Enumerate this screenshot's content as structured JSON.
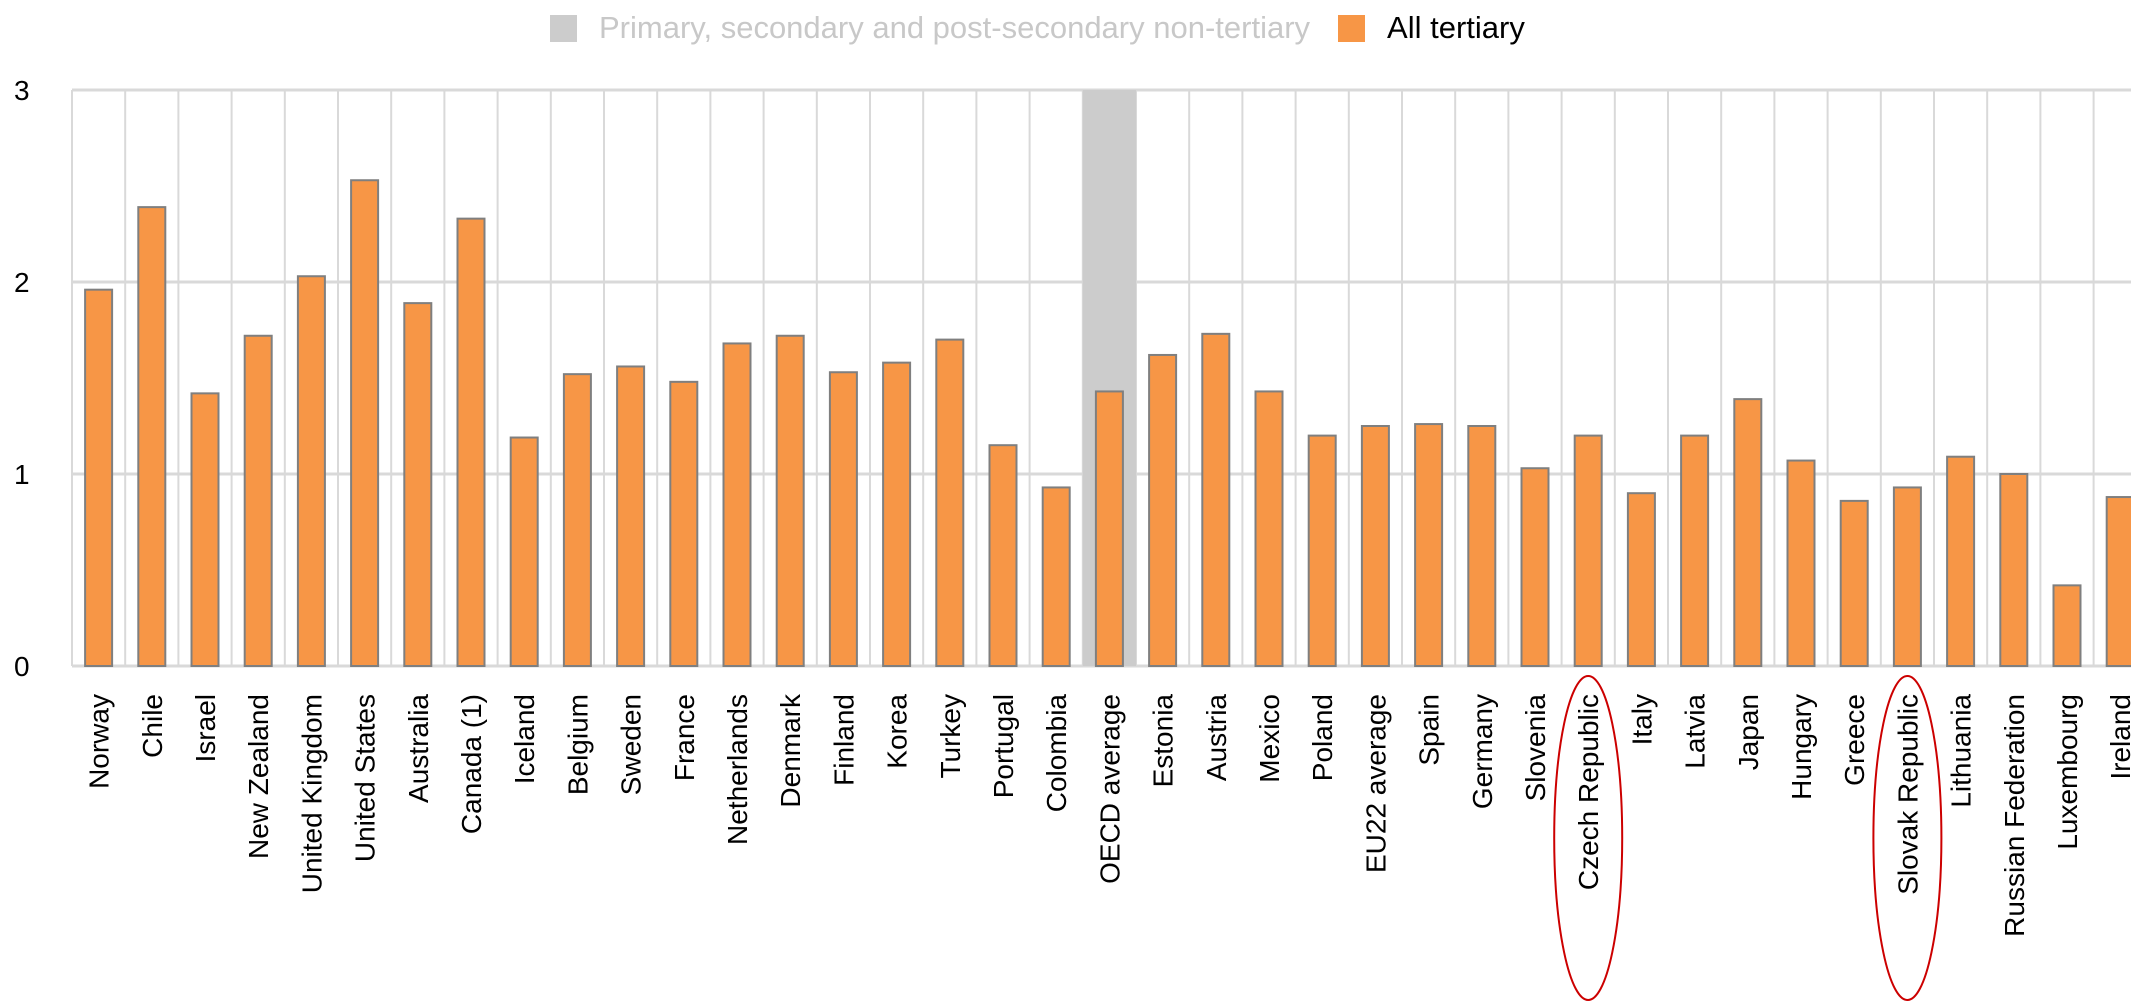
{
  "legend": {
    "items": [
      {
        "label": "Primary, secondary and post-secondary non-tertiary",
        "color": "#cccccc",
        "active": false
      },
      {
        "label": "All tertiary",
        "color": "#f79646",
        "active": true
      }
    ]
  },
  "chart_data": {
    "type": "bar",
    "title": "",
    "xlabel": "",
    "ylabel": "",
    "ylim": [
      0,
      3
    ],
    "yticks": [
      "0",
      "1",
      "2",
      "3"
    ],
    "grid": true,
    "legend_position": "top",
    "bar_color": "#f79646",
    "bar_edge_color": "#7f7f7f",
    "highlight_color": "#cccccc",
    "highlight_category": "OECD average",
    "circle_color": "#cc0000",
    "circled_categories": [
      "Czech Republic",
      "Slovak Republic"
    ],
    "categories": [
      "Norway",
      "Chile",
      "Israel",
      "New Zealand",
      "United Kingdom",
      "United States",
      "Australia",
      "Canada (1)",
      "Iceland",
      "Belgium",
      "Sweden",
      "France",
      "Netherlands",
      "Denmark",
      "Finland",
      "Korea",
      "Turkey",
      "Portugal",
      "Colombia",
      "OECD average",
      "Estonia",
      "Austria",
      "Mexico",
      "Poland",
      "EU22 average",
      "Spain",
      "Germany",
      "Slovenia",
      "Czech Republic",
      "Italy",
      "Latvia",
      "Japan",
      "Hungary",
      "Greece",
      "Slovak Republic",
      "Lithuania",
      "Russian Federation",
      "Luxembourg",
      "Ireland"
    ],
    "series": [
      {
        "name": "All tertiary",
        "values": [
          1.96,
          2.39,
          1.42,
          1.72,
          2.03,
          2.53,
          1.89,
          2.33,
          1.19,
          1.52,
          1.56,
          1.48,
          1.68,
          1.72,
          1.53,
          1.58,
          1.7,
          1.15,
          0.93,
          1.43,
          1.62,
          1.73,
          1.43,
          1.2,
          1.25,
          1.26,
          1.25,
          1.03,
          1.2,
          0.9,
          1.2,
          1.39,
          1.07,
          0.86,
          0.93,
          1.09,
          1.0,
          0.42,
          0.88
        ]
      }
    ]
  }
}
